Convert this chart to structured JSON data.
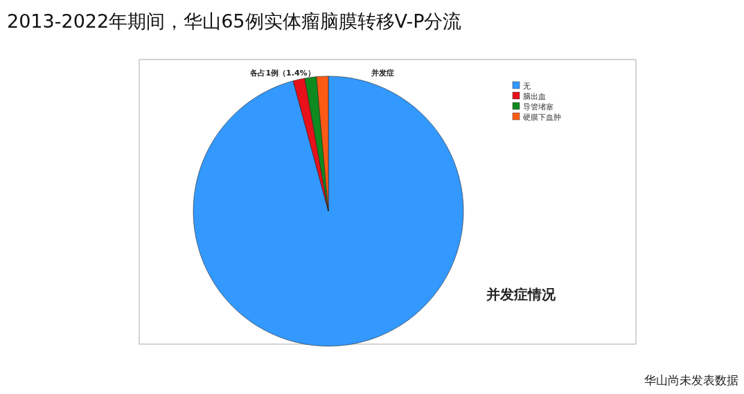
{
  "chart_data": {
    "type": "pie",
    "title": "2013-2022年期间，华山65例实体瘤脑膜转移V-P分流",
    "subtitle": "并发症",
    "categories": [
      "无",
      "脑出血",
      "导管堵塞",
      "硬膜下血肿"
    ],
    "values": [
      95.8,
      1.4,
      1.4,
      1.4
    ],
    "colors": [
      "#3399ff",
      "#e8101a",
      "#0f8a1e",
      "#ff5a14"
    ],
    "legend": "top right",
    "annotations": [
      "各占1例（1.4%）",
      "并发症情况",
      "华山尚未发表数据"
    ]
  }
}
